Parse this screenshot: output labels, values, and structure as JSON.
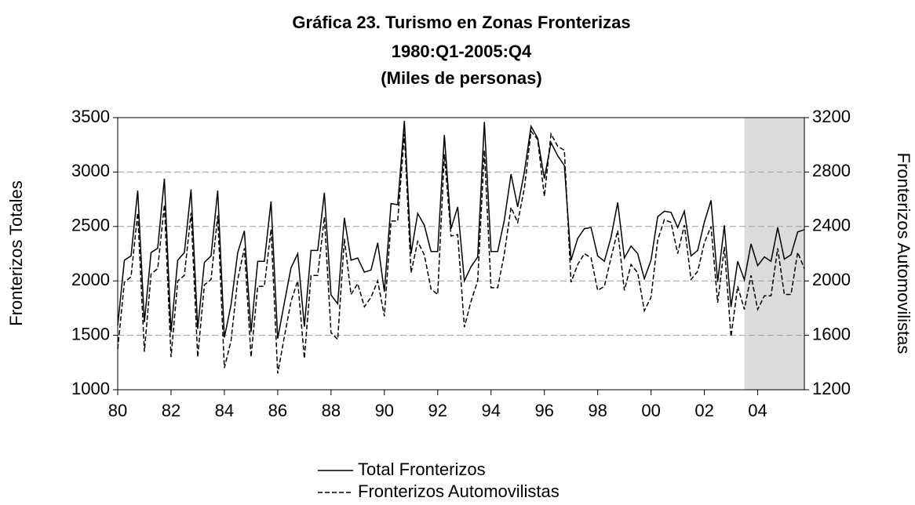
{
  "chart_data": {
    "type": "line",
    "title": "Gráfica 23. Turismo en Zonas Fronterizas",
    "subtitle": [
      "1980:Q1-2005:Q4",
      "(Miles de personas)"
    ],
    "y_label": "Fronterizos Totales",
    "y2_label": "Fronterizos Automovilistas",
    "x": [
      1980,
      1980.25,
      1980.5,
      1980.75,
      1981,
      1981.25,
      1981.5,
      1981.75,
      1982,
      1982.25,
      1982.5,
      1982.75,
      1983,
      1983.25,
      1983.5,
      1983.75,
      1984,
      1984.25,
      1984.5,
      1984.75,
      1985,
      1985.25,
      1985.5,
      1985.75,
      1986,
      1986.25,
      1986.5,
      1986.75,
      1987,
      1987.25,
      1987.5,
      1987.75,
      1988,
      1988.25,
      1988.5,
      1988.75,
      1989,
      1989.25,
      1989.5,
      1989.75,
      1990,
      1990.25,
      1990.5,
      1990.75,
      1991,
      1991.25,
      1991.5,
      1991.75,
      1992,
      1992.25,
      1992.5,
      1992.75,
      1993,
      1993.25,
      1993.5,
      1993.75,
      1994,
      1994.25,
      1994.5,
      1994.75,
      1995,
      1995.25,
      1995.5,
      1995.75,
      1996,
      1996.25,
      1996.5,
      1996.75,
      1997,
      1997.25,
      1997.5,
      1997.75,
      1998,
      1998.25,
      1998.5,
      1998.75,
      1999,
      1999.25,
      1999.5,
      1999.75,
      2000,
      2000.25,
      2000.5,
      2000.75,
      2001,
      2001.25,
      2001.5,
      2001.75,
      2002,
      2002.25,
      2002.5,
      2002.75,
      2003,
      2003.25,
      2003.5,
      2003.75,
      2004,
      2004.25,
      2004.5,
      2004.75,
      2005,
      2005.25,
      2005.5,
      2005.75
    ],
    "series": [
      {
        "name": "Total Fronterizos",
        "color": "#000000",
        "line_style": "solid",
        "axis": "y",
        "values": [
          1590,
          2190,
          2230,
          2830,
          1620,
          2260,
          2300,
          2940,
          1530,
          2190,
          2260,
          2840,
          1560,
          2170,
          2230,
          2830,
          1480,
          1780,
          2260,
          2460,
          1530,
          2180,
          2180,
          2730,
          1470,
          1800,
          2120,
          2250,
          1580,
          2280,
          2280,
          2810,
          1870,
          1790,
          2580,
          2190,
          2210,
          2080,
          2100,
          2350,
          1900,
          2710,
          2700,
          3470,
          2250,
          2620,
          2510,
          2270,
          2270,
          3340,
          2480,
          2680,
          2000,
          2130,
          2220,
          3460,
          2270,
          2270,
          2560,
          2980,
          2680,
          3000,
          3420,
          3310,
          2940,
          3270,
          3150,
          3060,
          2190,
          2390,
          2480,
          2490,
          2230,
          2180,
          2400,
          2720,
          2210,
          2320,
          2250,
          2020,
          2190,
          2590,
          2640,
          2630,
          2490,
          2640,
          2230,
          2280,
          2540,
          2740,
          1990,
          2510,
          1760,
          2180,
          2010,
          2340,
          2140,
          2220,
          2180,
          2490,
          2200,
          2240,
          2450,
          2470
        ]
      },
      {
        "name": "Fronterizos Automovilistas",
        "color": "#000000",
        "line_style": "dashed",
        "axis": "y2",
        "values": [
          1500,
          1990,
          2030,
          2500,
          1480,
          2050,
          2090,
          2560,
          1440,
          2000,
          2040,
          2500,
          1440,
          1970,
          2010,
          2480,
          1360,
          1560,
          2010,
          2240,
          1440,
          1960,
          1960,
          2380,
          1320,
          1590,
          1850,
          2000,
          1430,
          2040,
          2040,
          2470,
          1620,
          1570,
          2310,
          1900,
          1980,
          1810,
          1880,
          2000,
          1740,
          2440,
          2440,
          3080,
          2060,
          2290,
          2190,
          1940,
          1900,
          2930,
          2330,
          2340,
          1660,
          1850,
          2000,
          2960,
          1950,
          1950,
          2200,
          2540,
          2430,
          2680,
          3100,
          3040,
          2620,
          3080,
          2990,
          2960,
          1990,
          2120,
          2200,
          2170,
          1930,
          1960,
          2170,
          2370,
          1930,
          2120,
          2060,
          1780,
          1880,
          2300,
          2450,
          2430,
          2200,
          2410,
          2010,
          2070,
          2280,
          2400,
          1840,
          2250,
          1590,
          1960,
          1790,
          2040,
          1790,
          1890,
          1890,
          2240,
          1900,
          1900,
          2210,
          2090
        ]
      }
    ],
    "xlim": [
      1980,
      2005.75
    ],
    "xticks": [
      {
        "value": 1980,
        "label": "80"
      },
      {
        "value": 1982,
        "label": "82"
      },
      {
        "value": 1984,
        "label": "84"
      },
      {
        "value": 1986,
        "label": "86"
      },
      {
        "value": 1988,
        "label": "88"
      },
      {
        "value": 1990,
        "label": "90"
      },
      {
        "value": 1992,
        "label": "92"
      },
      {
        "value": 1994,
        "label": "94"
      },
      {
        "value": 1996,
        "label": "96"
      },
      {
        "value": 1998,
        "label": "98"
      },
      {
        "value": 2000,
        "label": "00"
      },
      {
        "value": 2002,
        "label": "02"
      },
      {
        "value": 2004,
        "label": "04"
      }
    ],
    "ylim": [
      1000,
      3500
    ],
    "yticks": [
      1000,
      1500,
      2000,
      2500,
      3000,
      3500
    ],
    "y2lim": [
      1200,
      3200
    ],
    "y2ticks": [
      1200,
      1600,
      2000,
      2400,
      2800,
      3200
    ],
    "grid": true,
    "shade": {
      "xlim": [
        2003.5,
        2005.75
      ],
      "color": "#dcdcdc"
    },
    "legend": "bottom"
  }
}
